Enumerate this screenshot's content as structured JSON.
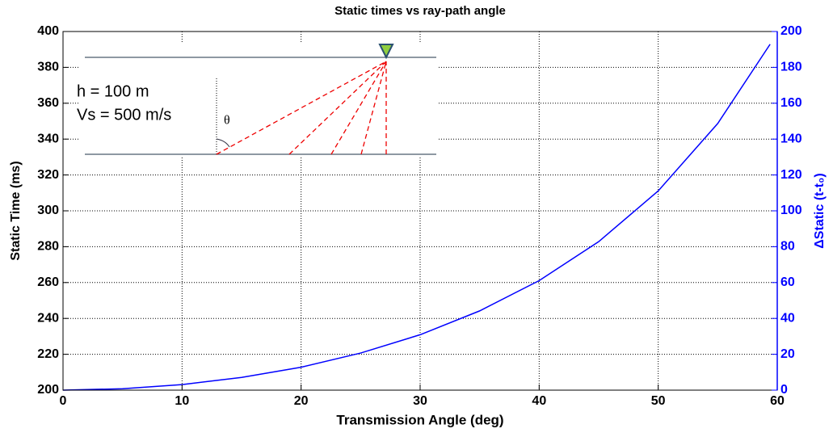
{
  "chart_data": {
    "type": "line",
    "title": "Static times vs ray-path angle",
    "xlabel": "Transmission Angle (deg)",
    "ylabel": "Static Time (ms)",
    "y2label": "ΔStatic (t-t₀)",
    "x": [
      0,
      5,
      10,
      15,
      20,
      25,
      30,
      35,
      40,
      45,
      50,
      55,
      59.4
    ],
    "values": [
      200,
      200.8,
      203.1,
      207.1,
      212.8,
      220.7,
      230.9,
      244.2,
      261.1,
      282.8,
      311.1,
      348.7,
      392.9
    ],
    "color": "#0000ff",
    "y2color": "#0000ff",
    "xlim": [
      0,
      60
    ],
    "xticks": [
      0,
      10,
      20,
      30,
      40,
      50,
      60
    ],
    "ylim": [
      200,
      400
    ],
    "yticks": [
      200,
      220,
      240,
      260,
      280,
      300,
      320,
      340,
      360,
      380,
      400
    ],
    "y2lim": [
      0,
      200
    ],
    "y2ticks": [
      0,
      20,
      40,
      60,
      80,
      100,
      120,
      140,
      160,
      180,
      200
    ],
    "grid": true,
    "annotations": [
      "h = 100 m",
      "Vs = 500 m/s",
      "θ"
    ]
  }
}
